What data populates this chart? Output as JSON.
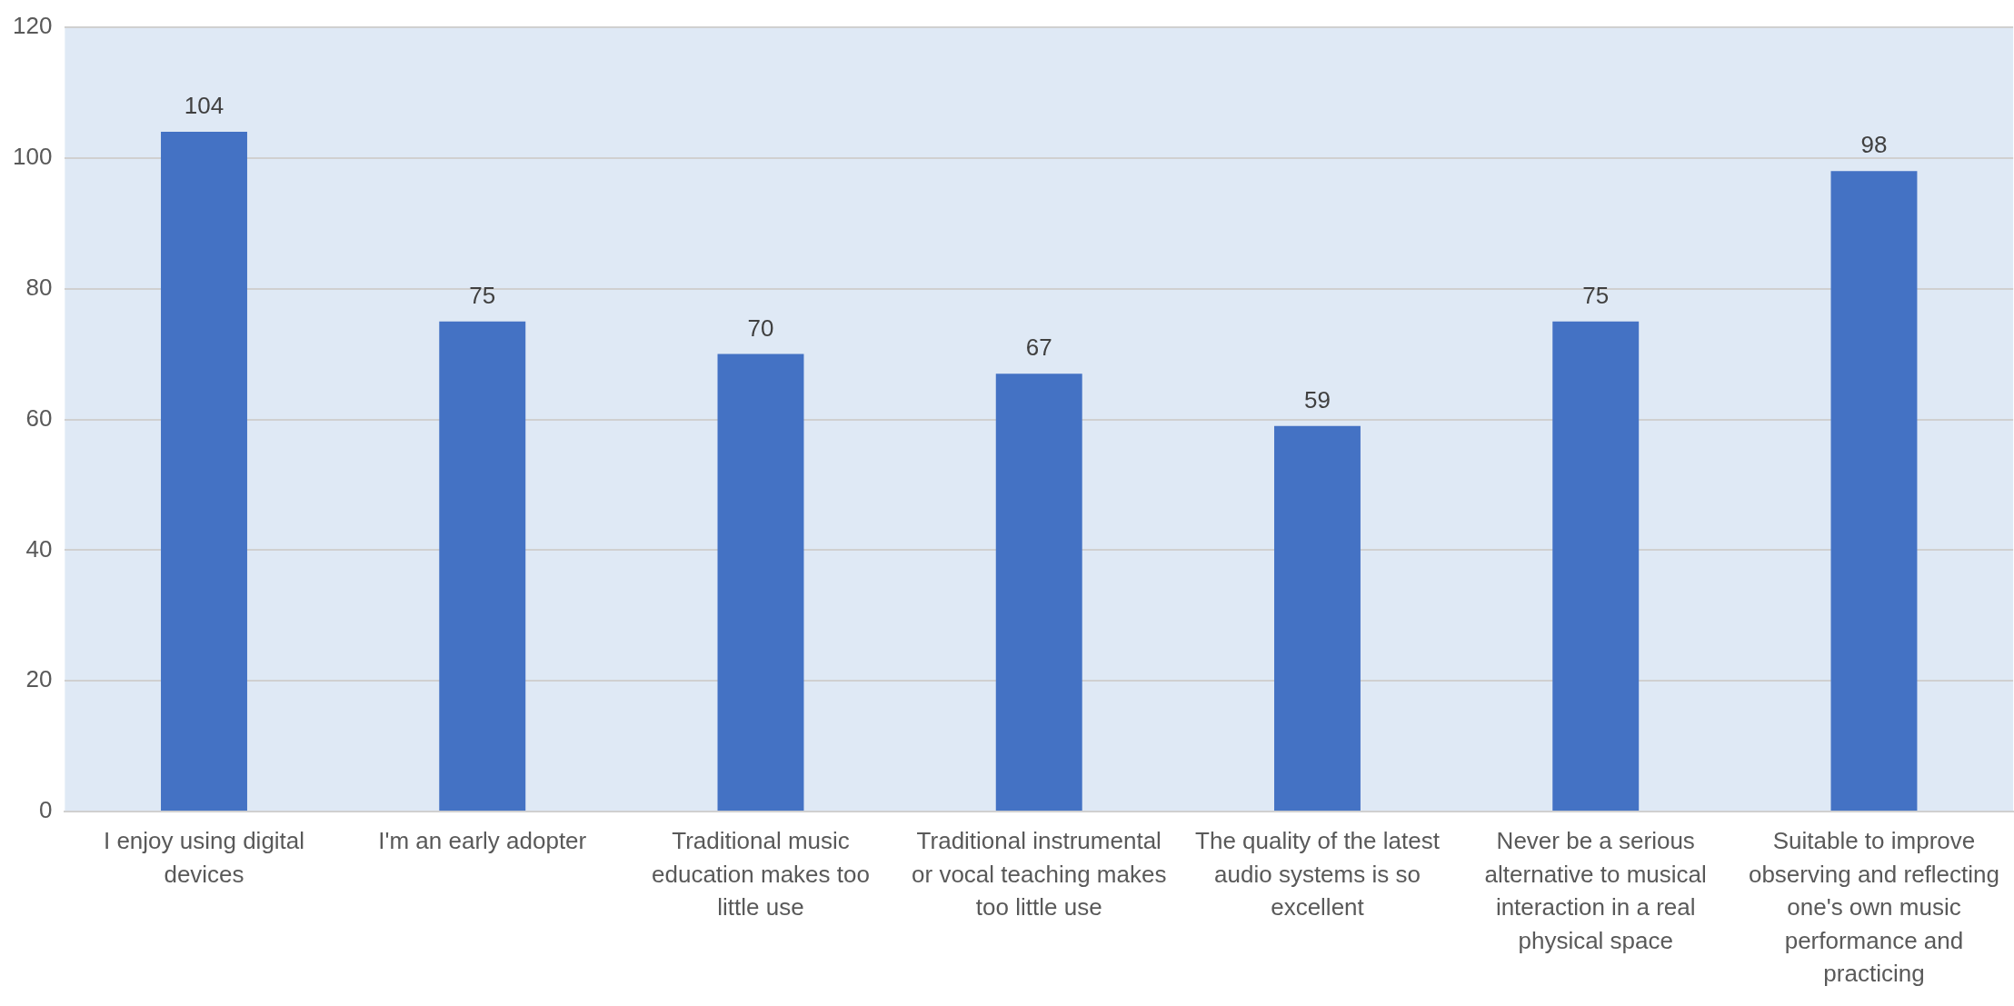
{
  "chart_data": {
    "type": "bar",
    "categories": [
      "I enjoy using digital devices",
      "I'm an early adopter",
      "Traditional music education makes too little use",
      "Traditional instrumental or vocal teaching makes too little use",
      "The quality of the latest audio systems is so excellent",
      "Never be a serious alternative to musical interaction in a real physical space",
      "Suitable to improve observing and reflecting one's own music performance and practicing"
    ],
    "values": [
      104,
      75,
      70,
      67,
      59,
      75,
      98
    ],
    "color": "#4472c4",
    "ylim": [
      0,
      120
    ],
    "yticks": [
      0,
      20,
      40,
      60,
      80,
      100,
      120
    ],
    "grid": "y",
    "legend": false,
    "data_labels": true
  }
}
